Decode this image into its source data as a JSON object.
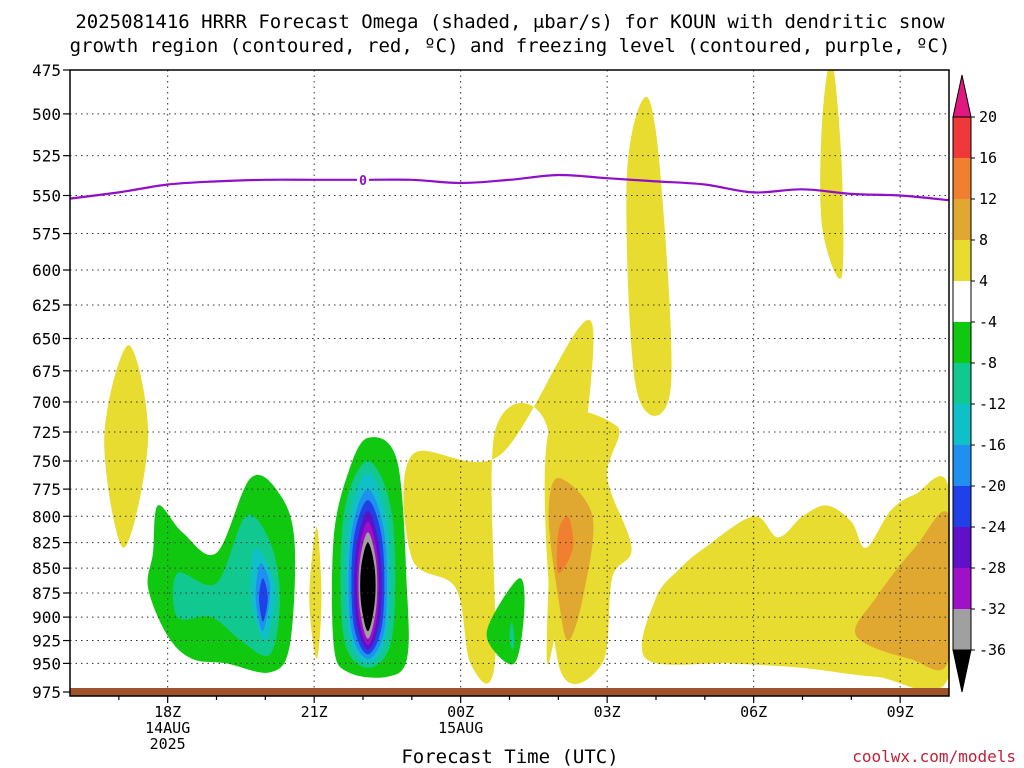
{
  "title_line1": "2025081416 HRRR Forecast Omega (shaded, μbar/s) for KOUN with dendritic snow",
  "title_line2": "growth region (contoured, red, ºC) and freezing level (contoured, purple, ºC)",
  "xlabel": "Forecast Time (UTC)",
  "credit": "coolwx.com/models",
  "chart_data": {
    "type": "heatmap",
    "y_scale": "log",
    "y_ticks": [
      475,
      500,
      525,
      550,
      575,
      600,
      625,
      650,
      675,
      700,
      725,
      750,
      775,
      800,
      825,
      850,
      875,
      900,
      925,
      950,
      975
    ],
    "ylim": [
      475,
      980
    ],
    "x_ticks": [
      {
        "t": 18,
        "lines": [
          "18Z",
          "14AUG",
          "2025"
        ]
      },
      {
        "t": 21,
        "lines": [
          "21Z"
        ]
      },
      {
        "t": 24,
        "lines": [
          "00Z",
          "15AUG"
        ]
      },
      {
        "t": 27,
        "lines": [
          "03Z"
        ]
      },
      {
        "t": 30,
        "lines": [
          "06Z"
        ]
      },
      {
        "t": 33,
        "lines": [
          "09Z"
        ]
      }
    ],
    "xlim": [
      16,
      34
    ],
    "colorbar": {
      "labels": [
        "20",
        "16",
        "12",
        "8",
        "4",
        "-4",
        "-8",
        "-12",
        "-16",
        "-20",
        "-24",
        "-28",
        "-32",
        "-36"
      ],
      "bins": [
        {
          "range": [
            16,
            20
          ],
          "color": "#f03838"
        },
        {
          "range": [
            12,
            16
          ],
          "color": "#f08030"
        },
        {
          "range": [
            8,
            12
          ],
          "color": "#e0a830"
        },
        {
          "range": [
            4,
            8
          ],
          "color": "#e8dc30"
        },
        {
          "range": [
            -4,
            4
          ],
          "color": "#ffffff"
        },
        {
          "range": [
            -8,
            -4
          ],
          "color": "#10c810"
        },
        {
          "range": [
            -12,
            -8
          ],
          "color": "#10c890"
        },
        {
          "range": [
            -16,
            -12
          ],
          "color": "#10c0c8"
        },
        {
          "range": [
            -20,
            -16
          ],
          "color": "#2090f0"
        },
        {
          "range": [
            -24,
            -20
          ],
          "color": "#2040e8"
        },
        {
          "range": [
            -28,
            -24
          ],
          "color": "#6010c8"
        },
        {
          "range": [
            -32,
            -28
          ],
          "color": "#a010c8"
        },
        {
          "range": [
            -36,
            -32
          ],
          "color": "#a0a0a0"
        }
      ],
      "over_color": "#e01880",
      "under_color": "#000000"
    },
    "freezing_level": {
      "label": "0",
      "color": "#9010c8",
      "points": [
        [
          16,
          552
        ],
        [
          17,
          548
        ],
        [
          18,
          543
        ],
        [
          19,
          541
        ],
        [
          20,
          540
        ],
        [
          21,
          540
        ],
        [
          22,
          540
        ],
        [
          23,
          540
        ],
        [
          24,
          542
        ],
        [
          25,
          540
        ],
        [
          26,
          537
        ],
        [
          27,
          539
        ],
        [
          28,
          541
        ],
        [
          29,
          543
        ],
        [
          30,
          548
        ],
        [
          31,
          546
        ],
        [
          32,
          549
        ],
        [
          33,
          550
        ],
        [
          34,
          553
        ]
      ]
    },
    "omega_features": [
      {
        "value_range": [
          4,
          8
        ],
        "color": "#e8dc30",
        "points": [
          [
            17.2,
            655
          ],
          [
            17.6,
            730
          ],
          [
            17.1,
            830
          ],
          [
            16.7,
            730
          ]
        ]
      },
      {
        "value_range": [
          4,
          8
        ],
        "color": "#e8dc30",
        "points": [
          [
            26.7,
            640
          ],
          [
            25.8,
            950
          ],
          [
            25.8,
            725
          ],
          [
            24.7,
            725
          ],
          [
            24.7,
            950
          ],
          [
            24.2,
            950
          ],
          [
            23.9,
            870
          ],
          [
            23.0,
            840
          ],
          [
            23.0,
            745
          ],
          [
            24.8,
            745
          ]
        ]
      },
      {
        "value_range": [
          4,
          8
        ],
        "color": "#e8dc30",
        "points": [
          [
            27.8,
            490
          ],
          [
            28.1,
            540
          ],
          [
            28.3,
            690
          ],
          [
            27.6,
            690
          ],
          [
            27.4,
            540
          ]
        ]
      },
      {
        "value_range": [
          4,
          8
        ],
        "color": "#e8dc30",
        "points": [
          [
            27.2,
            720
          ],
          [
            27.0,
            765
          ],
          [
            27.5,
            830
          ],
          [
            27.1,
            860
          ],
          [
            26.9,
            950
          ],
          [
            26.0,
            950
          ],
          [
            25.8,
            725
          ]
        ]
      },
      {
        "value_range": [
          4,
          8
        ],
        "color": "#e8dc30",
        "points": [
          [
            31.6,
            470
          ],
          [
            31.8,
            530
          ],
          [
            31.8,
            605
          ],
          [
            31.4,
            570
          ],
          [
            31.4,
            505
          ]
        ]
      },
      {
        "value_range": [
          4,
          8
        ],
        "color": "#e8dc30",
        "points": [
          [
            21.05,
            810
          ],
          [
            21.15,
            880
          ],
          [
            21.05,
            945
          ],
          [
            20.9,
            880
          ]
        ]
      },
      {
        "value_range": [
          4,
          8
        ],
        "color": "#e8dc30",
        "points": [
          [
            30.0,
            800
          ],
          [
            30.5,
            820
          ],
          [
            31.0,
            800
          ],
          [
            31.5,
            790
          ],
          [
            32.0,
            805
          ],
          [
            32.3,
            830
          ],
          [
            32.8,
            795
          ],
          [
            33.3,
            780
          ],
          [
            34.0,
            775
          ],
          [
            34.0,
            965
          ],
          [
            32.5,
            965
          ],
          [
            31.0,
            955
          ],
          [
            29.5,
            950
          ],
          [
            27.8,
            945
          ],
          [
            28.0,
            880
          ],
          [
            28.5,
            850
          ],
          [
            29.0,
            830
          ]
        ]
      },
      {
        "value_range": [
          8,
          12
        ],
        "color": "#e0a830",
        "points": [
          [
            26.0,
            765
          ],
          [
            26.7,
            800
          ],
          [
            26.5,
            880
          ],
          [
            26.2,
            925
          ],
          [
            26.0,
            880
          ],
          [
            25.8,
            800
          ]
        ]
      },
      {
        "value_range": [
          8,
          12
        ],
        "color": "#e0a830",
        "points": [
          [
            34.0,
            800
          ],
          [
            34.0,
            945
          ],
          [
            33.2,
            945
          ],
          [
            32.1,
            920
          ],
          [
            32.5,
            880
          ],
          [
            33.3,
            830
          ]
        ]
      },
      {
        "value_range": [
          12,
          16
        ],
        "color": "#f08030",
        "points": [
          [
            26.2,
            800
          ],
          [
            26.3,
            830
          ],
          [
            26.0,
            855
          ],
          [
            26.0,
            815
          ]
        ]
      },
      {
        "value_range": [
          -8,
          -4
        ],
        "color": "#10c810",
        "points": [
          [
            17.8,
            790
          ],
          [
            18.3,
            815
          ],
          [
            19.0,
            835
          ],
          [
            19.7,
            765
          ],
          [
            20.3,
            780
          ],
          [
            20.6,
            825
          ],
          [
            20.5,
            930
          ],
          [
            20.1,
            960
          ],
          [
            19.2,
            950
          ],
          [
            18.5,
            945
          ],
          [
            18.0,
            920
          ],
          [
            17.6,
            870
          ],
          [
            17.7,
            835
          ]
        ]
      },
      {
        "value_range": [
          -12,
          -8
        ],
        "color": "#10c890",
        "points": [
          [
            18.2,
            855
          ],
          [
            19.0,
            865
          ],
          [
            19.6,
            800
          ],
          [
            20.1,
            825
          ],
          [
            20.3,
            880
          ],
          [
            20.1,
            940
          ],
          [
            19.5,
            925
          ],
          [
            18.9,
            900
          ],
          [
            18.2,
            900
          ]
        ]
      },
      {
        "value_range": [
          -16,
          -12
        ],
        "color": "#10c0c8",
        "points": [
          [
            19.8,
            830
          ],
          [
            20.2,
            870
          ],
          [
            20.0,
            925
          ],
          [
            19.7,
            880
          ]
        ]
      },
      {
        "value_range": [
          -20,
          -16
        ],
        "color": "#2090f0",
        "points": [
          [
            19.9,
            845
          ],
          [
            20.1,
            870
          ],
          [
            19.95,
            915
          ],
          [
            19.8,
            880
          ]
        ]
      },
      {
        "value_range": [
          -24,
          -20
        ],
        "color": "#2040e8",
        "points": [
          [
            19.95,
            860
          ],
          [
            20.05,
            880
          ],
          [
            19.95,
            905
          ],
          [
            19.87,
            880
          ]
        ]
      },
      {
        "value_range": [
          -8,
          -4
        ],
        "color": "#10c810",
        "points": [
          [
            22.1,
            730
          ],
          [
            22.7,
            750
          ],
          [
            22.9,
            870
          ],
          [
            22.9,
            945
          ],
          [
            22.5,
            965
          ],
          [
            21.7,
            960
          ],
          [
            21.4,
            930
          ],
          [
            21.4,
            820
          ],
          [
            21.7,
            760
          ]
        ]
      },
      {
        "value_range": [
          -12,
          -8
        ],
        "color": "#10c890",
        "points": [
          [
            22.1,
            750
          ],
          [
            22.6,
            800
          ],
          [
            22.6,
            920
          ],
          [
            22.1,
            955
          ],
          [
            21.6,
            920
          ],
          [
            21.6,
            800
          ]
        ]
      },
      {
        "value_range": [
          -16,
          -12
        ],
        "color": "#10c0c8",
        "points": [
          [
            22.1,
            760
          ],
          [
            22.5,
            810
          ],
          [
            22.5,
            915
          ],
          [
            22.1,
            950
          ],
          [
            21.7,
            915
          ],
          [
            21.7,
            810
          ]
        ]
      },
      {
        "value_range": [
          -20,
          -16
        ],
        "color": "#2090f0",
        "points": [
          [
            22.1,
            775
          ],
          [
            22.45,
            820
          ],
          [
            22.45,
            910
          ],
          [
            22.1,
            945
          ],
          [
            21.75,
            910
          ],
          [
            21.75,
            820
          ]
        ]
      },
      {
        "value_range": [
          -24,
          -20
        ],
        "color": "#2040e8",
        "points": [
          [
            22.1,
            785
          ],
          [
            22.4,
            825
          ],
          [
            22.4,
            905
          ],
          [
            22.1,
            940
          ],
          [
            21.8,
            905
          ],
          [
            21.8,
            825
          ]
        ]
      },
      {
        "value_range": [
          -28,
          -24
        ],
        "color": "#6010c8",
        "points": [
          [
            22.1,
            795
          ],
          [
            22.35,
            835
          ],
          [
            22.35,
            900
          ],
          [
            22.1,
            935
          ],
          [
            21.85,
            900
          ],
          [
            21.85,
            835
          ]
        ]
      },
      {
        "value_range": [
          -32,
          -28
        ],
        "color": "#a010c8",
        "points": [
          [
            22.1,
            805
          ],
          [
            22.3,
            840
          ],
          [
            22.3,
            895
          ],
          [
            22.1,
            930
          ],
          [
            21.9,
            895
          ],
          [
            21.9,
            840
          ]
        ]
      },
      {
        "value_range": [
          -36,
          -32
        ],
        "color": "#a0a0a0",
        "points": [
          [
            22.1,
            815
          ],
          [
            22.27,
            845
          ],
          [
            22.27,
            890
          ],
          [
            22.1,
            923
          ],
          [
            21.93,
            890
          ],
          [
            21.93,
            845
          ]
        ]
      },
      {
        "value_range": [
          -40,
          -36
        ],
        "color": "#000000",
        "points": [
          [
            22.1,
            825
          ],
          [
            22.24,
            850
          ],
          [
            22.24,
            885
          ],
          [
            22.1,
            915
          ],
          [
            21.96,
            885
          ],
          [
            21.96,
            850
          ]
        ]
      },
      {
        "value_range": [
          -8,
          -4
        ],
        "color": "#10c810",
        "points": [
          [
            25.2,
            860
          ],
          [
            25.3,
            895
          ],
          [
            25.1,
            950
          ],
          [
            24.6,
            930
          ],
          [
            24.6,
            905
          ]
        ]
      },
      {
        "value_range": [
          -12,
          -8
        ],
        "color": "#10c890",
        "points": [
          [
            25.05,
            905
          ],
          [
            25.1,
            925
          ],
          [
            25.05,
            935
          ],
          [
            25.0,
            920
          ]
        ]
      }
    ],
    "surface": {
      "color": "#a0522d",
      "pressure": 975
    }
  }
}
